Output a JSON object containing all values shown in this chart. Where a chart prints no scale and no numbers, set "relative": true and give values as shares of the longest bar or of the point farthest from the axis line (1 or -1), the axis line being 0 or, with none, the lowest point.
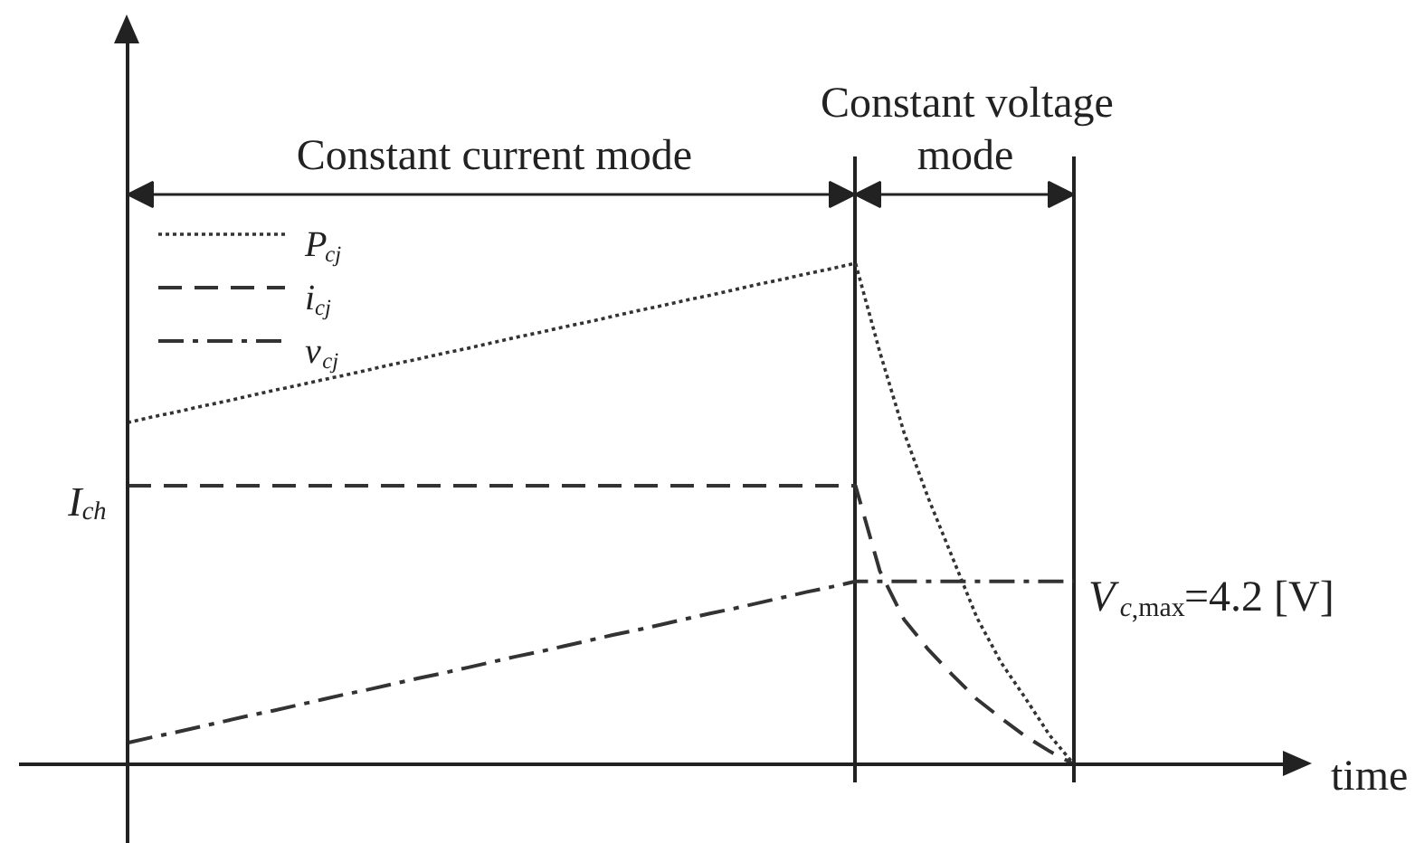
{
  "chart_data": {
    "type": "line",
    "relative": true,
    "legend": "top left",
    "grid": "x",
    "categories": [
      null,
      null,
      null,
      null,
      null,
      null,
      null,
      null,
      null,
      null,
      null,
      null,
      null,
      null,
      null,
      null,
      null,
      null,
      null,
      null,
      null,
      null,
      null,
      null,
      null,
      null,
      null,
      null,
      null,
      null,
      null,
      null,
      null,
      null,
      null,
      null,
      null,
      null,
      null,
      null
    ],
    "series": [
      {
        "name": "P$_{cj}$",
        "color": "#333333",
        "line_style": "dotted",
        "values": [
          0.682,
          0.693,
          0.703,
          0.714,
          0.724,
          0.735,
          0.746,
          0.756,
          0.767,
          0.777,
          0.788,
          0.799,
          0.809,
          0.82,
          0.83,
          0.841,
          0.852,
          0.862,
          0.873,
          0.883,
          0.894,
          0.905,
          0.915,
          0.926,
          0.936,
          0.947,
          0.958,
          0.968,
          0.979,
          0.989,
          1.0,
          0.823,
          0.662,
          0.531,
          0.412,
          0.293,
          0.203,
          0.132,
          0.058,
          0
        ]
      },
      {
        "name": "i$_{cj}$",
        "color": "#333333",
        "line_style": "dashed",
        "values": [
          0.556,
          0.556,
          0.556,
          0.556,
          0.556,
          0.556,
          0.556,
          0.556,
          0.556,
          0.556,
          0.556,
          0.556,
          0.556,
          0.556,
          0.556,
          0.556,
          0.556,
          0.556,
          0.556,
          0.556,
          0.556,
          0.556,
          0.556,
          0.556,
          0.556,
          0.556,
          0.556,
          0.556,
          0.556,
          0.556,
          0.556,
          0.386,
          0.289,
          0.229,
          0.178,
          0.13,
          0.092,
          0.056,
          0.026,
          0
        ]
      },
      {
        "name": "v$_{cj}$",
        "color": "#333333",
        "line_style": "dashdot",
        "values": [
          0.043,
          0.054,
          0.064,
          0.075,
          0.086,
          0.097,
          0.107,
          0.118,
          0.129,
          0.14,
          0.15,
          0.161,
          0.172,
          0.182,
          0.193,
          0.204,
          0.215,
          0.225,
          0.236,
          0.247,
          0.258,
          0.268,
          0.279,
          0.29,
          0.301,
          0.311,
          0.322,
          0.333,
          0.344,
          0.354,
          0.365,
          0.365,
          0.365,
          0.365,
          0.365,
          0.365,
          0.365,
          0.365,
          0.365,
          0.365
        ]
      }
    ],
    "annotations": [
      "Constant current mode",
      "Constant voltage mode",
      "I$_{ch}$",
      "V$_{c,max}$=4.2 [V]",
      "time"
    ]
  }
}
